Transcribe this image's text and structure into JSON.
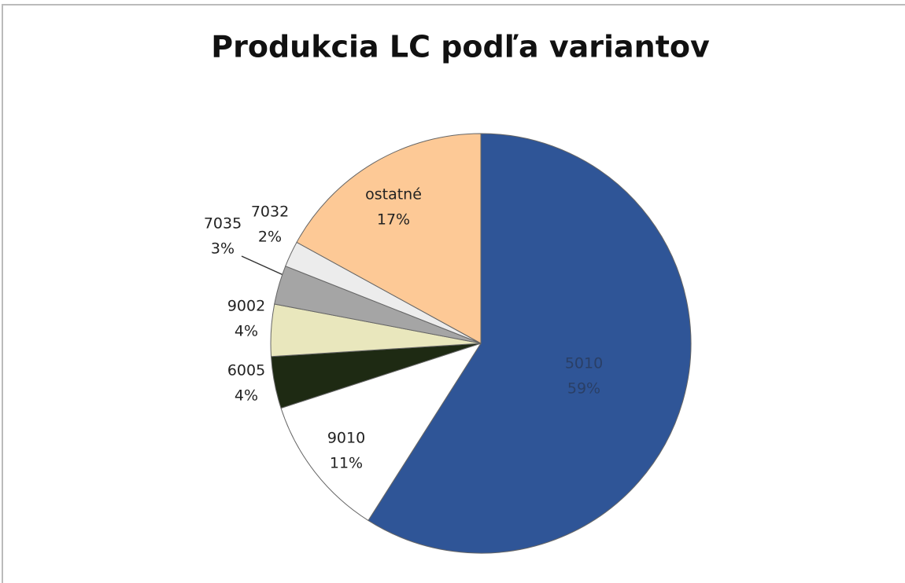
{
  "chart_data": {
    "type": "pie",
    "title": "Produkcia LC podľa variantov",
    "categories": [
      "5010",
      "9010",
      "6005",
      "9002",
      "7035",
      "7032",
      "ostatné"
    ],
    "values": [
      59,
      11,
      4,
      4,
      3,
      2,
      17
    ],
    "value_labels": [
      "59%",
      "11%",
      "4%",
      "4%",
      "3%",
      "2%",
      "17%"
    ],
    "colors": [
      "#2f5597",
      "#ffffff",
      "#1e2a13",
      "#e9e7bd",
      "#a5a5a5",
      "#ececec",
      "#fdc996"
    ]
  }
}
